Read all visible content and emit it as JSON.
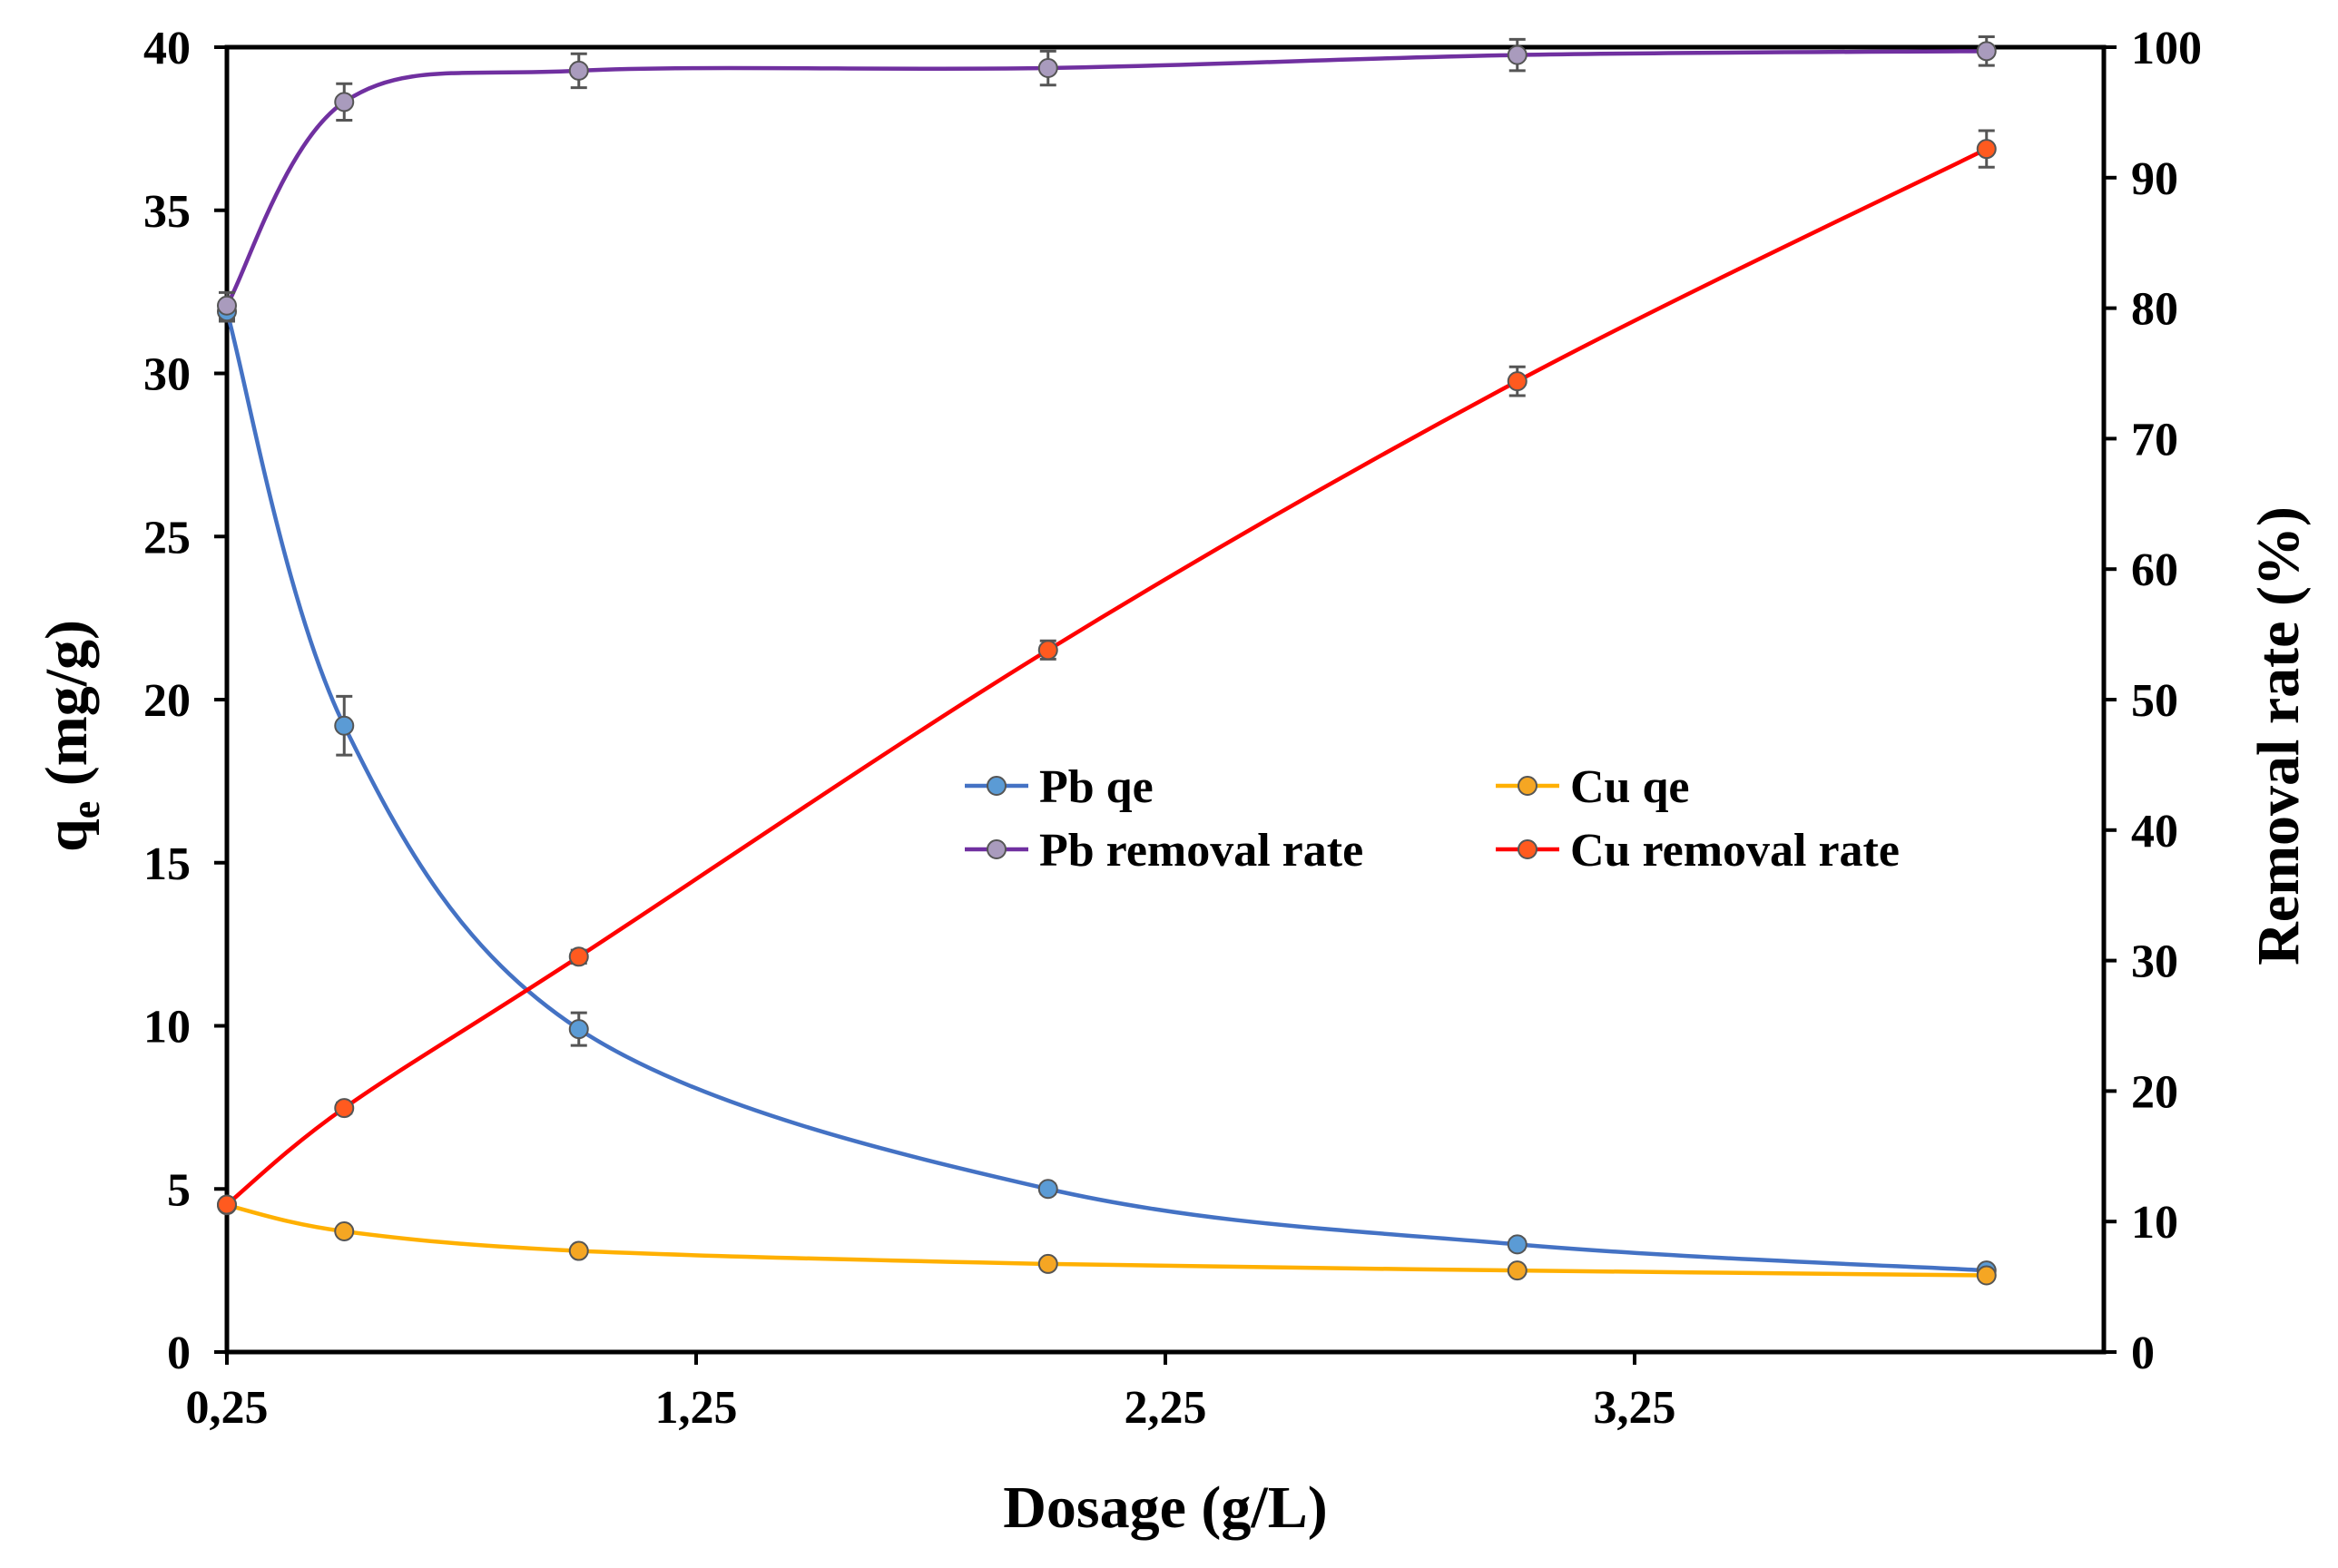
{
  "chart_data": {
    "type": "line",
    "title": "",
    "xlabel": "Dosage (g/L)",
    "ylabel_left": {
      "main": "q",
      "sub": "e",
      "rest": " (mg/g)"
    },
    "ylabel_right": "Removal rate (%)",
    "xlim": [
      0.25,
      4.25
    ],
    "ylim_left": [
      0,
      40
    ],
    "ylim_right": [
      0,
      100
    ],
    "x_ticks": [
      0.25,
      1.25,
      2.25,
      3.25
    ],
    "x_tick_labels": [
      "0,25",
      "1,25",
      "2,25",
      "3,25"
    ],
    "y_left_ticks": [
      0,
      5,
      10,
      15,
      20,
      25,
      30,
      35,
      40
    ],
    "y_left_tick_labels": [
      "0",
      "5",
      "10",
      "15",
      "20",
      "25",
      "30",
      "35",
      "40"
    ],
    "y_right_ticks": [
      0,
      10,
      20,
      30,
      40,
      50,
      60,
      70,
      80,
      90,
      100
    ],
    "y_right_tick_labels": [
      "0",
      "10",
      "20",
      "30",
      "40",
      "50",
      "60",
      "70",
      "80",
      "90",
      "100"
    ],
    "grid": false,
    "legend_position": "center-right",
    "x": [
      0.25,
      0.5,
      1.0,
      2.0,
      3.0,
      4.0
    ],
    "series": [
      {
        "name": "Pb qe",
        "axis": "left",
        "color": "#4472c4",
        "marker_fill": "#5b9bd5",
        "values": [
          31.9,
          19.2,
          9.9,
          5.0,
          3.3,
          2.5
        ],
        "errors": [
          0.3,
          0.9,
          0.5,
          0.15,
          0.15,
          0.1
        ]
      },
      {
        "name": "Cu qe",
        "axis": "left",
        "color": "#ffb000",
        "marker_fill": "#f5a623",
        "values": [
          4.5,
          3.7,
          3.1,
          2.7,
          2.5,
          2.35
        ],
        "errors": [
          0.1,
          0.1,
          0.1,
          0.1,
          0.1,
          0.1
        ]
      },
      {
        "name": "Pb removal rate",
        "axis": "right",
        "color": "#7030a0",
        "marker_fill": "#a99bbd",
        "values": [
          80.2,
          95.8,
          98.2,
          98.4,
          99.4,
          99.7
        ],
        "errors": [
          1.0,
          1.4,
          1.3,
          1.3,
          1.2,
          1.1
        ]
      },
      {
        "name": "Cu removal rate",
        "axis": "right",
        "color": "#ff0000",
        "marker_fill": "#ff5a1f",
        "values": [
          11.3,
          18.7,
          30.3,
          53.8,
          74.4,
          92.2
        ],
        "errors": [
          0.3,
          0.4,
          0.5,
          0.7,
          1.1,
          1.4
        ]
      }
    ]
  }
}
